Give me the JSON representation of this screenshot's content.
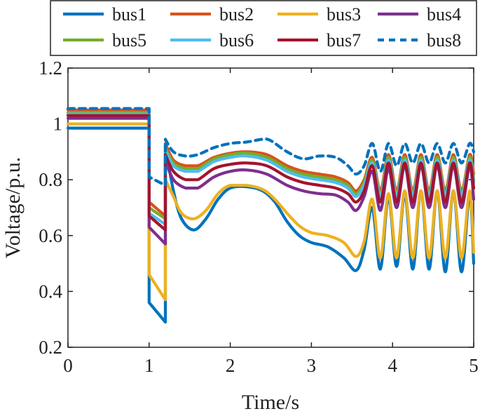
{
  "chart_data": {
    "type": "line",
    "xlabel": "Time/s",
    "ylabel": "Voltage/p.u.",
    "xlim": [
      0,
      5
    ],
    "ylim": [
      0.2,
      1.2
    ],
    "xticks": [
      0,
      1,
      2,
      3,
      4,
      5
    ],
    "xtick_labels": [
      "0",
      "1",
      "2",
      "3",
      "4",
      "5"
    ],
    "yticks": [
      0.2,
      0.4,
      0.6,
      0.8,
      1.0,
      1.2
    ],
    "ytick_labels": [
      "0.2",
      "0.4",
      "0.6",
      "0.8",
      "1",
      "1.2"
    ],
    "grid": false,
    "legend_position": "top",
    "series": [
      {
        "name": "bus1",
        "color": "#0072BD",
        "dash": "solid",
        "points": [
          [
            0,
            0.985
          ],
          [
            1,
            0.985
          ],
          [
            1,
            0.36
          ],
          [
            1.2,
            0.29
          ],
          [
            1.2,
            0.92
          ],
          [
            1.3,
            0.76
          ],
          [
            1.4,
            0.66
          ],
          [
            1.55,
            0.62
          ],
          [
            1.7,
            0.66
          ],
          [
            1.85,
            0.73
          ],
          [
            2.0,
            0.77
          ],
          [
            2.2,
            0.775
          ],
          [
            2.4,
            0.76
          ],
          [
            2.55,
            0.72
          ],
          [
            2.7,
            0.65
          ],
          [
            2.85,
            0.6
          ],
          [
            3.0,
            0.575
          ],
          [
            3.2,
            0.56
          ],
          [
            3.4,
            0.52
          ],
          [
            3.55,
            0.475
          ],
          [
            3.65,
            0.55
          ],
          [
            3.75,
            0.7
          ],
          [
            3.85,
            0.48
          ],
          [
            3.95,
            0.74
          ],
          [
            4.05,
            0.49
          ],
          [
            4.15,
            0.75
          ],
          [
            4.25,
            0.48
          ],
          [
            4.35,
            0.76
          ],
          [
            4.45,
            0.48
          ],
          [
            4.55,
            0.76
          ],
          [
            4.65,
            0.47
          ],
          [
            4.75,
            0.76
          ],
          [
            4.85,
            0.47
          ],
          [
            4.95,
            0.75
          ],
          [
            5.0,
            0.5
          ]
        ]
      },
      {
        "name": "bus2",
        "color": "#D95319",
        "dash": "solid",
        "points": [
          [
            0,
            1.05
          ],
          [
            1,
            1.05
          ],
          [
            1,
            0.72
          ],
          [
            1.2,
            0.67
          ],
          [
            1.2,
            0.93
          ],
          [
            1.3,
            0.87
          ],
          [
            1.45,
            0.85
          ],
          [
            1.6,
            0.85
          ],
          [
            1.8,
            0.88
          ],
          [
            2.0,
            0.895
          ],
          [
            2.2,
            0.9
          ],
          [
            2.45,
            0.89
          ],
          [
            2.7,
            0.85
          ],
          [
            2.9,
            0.83
          ],
          [
            3.1,
            0.82
          ],
          [
            3.3,
            0.81
          ],
          [
            3.45,
            0.79
          ],
          [
            3.55,
            0.76
          ],
          [
            3.65,
            0.8
          ],
          [
            3.75,
            0.88
          ],
          [
            3.85,
            0.76
          ],
          [
            3.95,
            0.89
          ],
          [
            4.05,
            0.76
          ],
          [
            4.15,
            0.89
          ],
          [
            4.25,
            0.76
          ],
          [
            4.35,
            0.89
          ],
          [
            4.45,
            0.76
          ],
          [
            4.55,
            0.89
          ],
          [
            4.65,
            0.76
          ],
          [
            4.75,
            0.89
          ],
          [
            4.85,
            0.76
          ],
          [
            4.95,
            0.89
          ],
          [
            5.0,
            0.82
          ]
        ]
      },
      {
        "name": "bus3",
        "color": "#EDB120",
        "dash": "solid",
        "points": [
          [
            0,
            1.0
          ],
          [
            1,
            1.0
          ],
          [
            1,
            0.46
          ],
          [
            1.2,
            0.37
          ],
          [
            1.2,
            0.8
          ],
          [
            1.3,
            0.74
          ],
          [
            1.4,
            0.68
          ],
          [
            1.55,
            0.66
          ],
          [
            1.7,
            0.69
          ],
          [
            1.85,
            0.75
          ],
          [
            2.0,
            0.78
          ],
          [
            2.2,
            0.78
          ],
          [
            2.4,
            0.765
          ],
          [
            2.55,
            0.73
          ],
          [
            2.7,
            0.68
          ],
          [
            2.85,
            0.635
          ],
          [
            3.0,
            0.61
          ],
          [
            3.2,
            0.6
          ],
          [
            3.4,
            0.575
          ],
          [
            3.55,
            0.525
          ],
          [
            3.65,
            0.58
          ],
          [
            3.75,
            0.73
          ],
          [
            3.85,
            0.52
          ],
          [
            3.95,
            0.75
          ],
          [
            4.05,
            0.52
          ],
          [
            4.15,
            0.76
          ],
          [
            4.25,
            0.52
          ],
          [
            4.35,
            0.76
          ],
          [
            4.45,
            0.52
          ],
          [
            4.55,
            0.76
          ],
          [
            4.65,
            0.52
          ],
          [
            4.75,
            0.76
          ],
          [
            4.85,
            0.52
          ],
          [
            4.95,
            0.76
          ],
          [
            5.0,
            0.54
          ]
        ]
      },
      {
        "name": "bus4",
        "color": "#7E2F8E",
        "dash": "solid",
        "points": [
          [
            0,
            1.02
          ],
          [
            1,
            1.02
          ],
          [
            1,
            0.63
          ],
          [
            1.2,
            0.57
          ],
          [
            1.2,
            0.87
          ],
          [
            1.3,
            0.8
          ],
          [
            1.45,
            0.77
          ],
          [
            1.6,
            0.77
          ],
          [
            1.8,
            0.81
          ],
          [
            2.0,
            0.83
          ],
          [
            2.2,
            0.835
          ],
          [
            2.45,
            0.82
          ],
          [
            2.7,
            0.78
          ],
          [
            2.9,
            0.76
          ],
          [
            3.1,
            0.75
          ],
          [
            3.3,
            0.745
          ],
          [
            3.45,
            0.72
          ],
          [
            3.55,
            0.69
          ],
          [
            3.65,
            0.74
          ],
          [
            3.75,
            0.83
          ],
          [
            3.85,
            0.69
          ],
          [
            3.95,
            0.84
          ],
          [
            4.05,
            0.7
          ],
          [
            4.15,
            0.85
          ],
          [
            4.25,
            0.7
          ],
          [
            4.35,
            0.85
          ],
          [
            4.45,
            0.7
          ],
          [
            4.55,
            0.85
          ],
          [
            4.65,
            0.7
          ],
          [
            4.75,
            0.85
          ],
          [
            4.85,
            0.7
          ],
          [
            4.95,
            0.85
          ],
          [
            5.0,
            0.73
          ]
        ]
      },
      {
        "name": "bus5",
        "color": "#77AC30",
        "dash": "solid",
        "points": [
          [
            0,
            1.04
          ],
          [
            1,
            1.04
          ],
          [
            1,
            0.7
          ],
          [
            1.2,
            0.66
          ],
          [
            1.2,
            0.915
          ],
          [
            1.3,
            0.86
          ],
          [
            1.45,
            0.84
          ],
          [
            1.6,
            0.84
          ],
          [
            1.8,
            0.875
          ],
          [
            2.0,
            0.89
          ],
          [
            2.2,
            0.895
          ],
          [
            2.45,
            0.88
          ],
          [
            2.7,
            0.84
          ],
          [
            2.9,
            0.82
          ],
          [
            3.1,
            0.81
          ],
          [
            3.3,
            0.8
          ],
          [
            3.45,
            0.78
          ],
          [
            3.55,
            0.75
          ],
          [
            3.65,
            0.79
          ],
          [
            3.75,
            0.87
          ],
          [
            3.85,
            0.75
          ],
          [
            3.95,
            0.88
          ],
          [
            4.05,
            0.75
          ],
          [
            4.15,
            0.88
          ],
          [
            4.25,
            0.75
          ],
          [
            4.35,
            0.88
          ],
          [
            4.45,
            0.75
          ],
          [
            4.55,
            0.88
          ],
          [
            4.65,
            0.75
          ],
          [
            4.75,
            0.88
          ],
          [
            4.85,
            0.75
          ],
          [
            4.95,
            0.88
          ],
          [
            5.0,
            0.8
          ]
        ]
      },
      {
        "name": "bus6",
        "color": "#4DBEEE",
        "dash": "solid",
        "points": [
          [
            0,
            1.035
          ],
          [
            1,
            1.035
          ],
          [
            1,
            0.68
          ],
          [
            1.2,
            0.64
          ],
          [
            1.2,
            0.905
          ],
          [
            1.3,
            0.85
          ],
          [
            1.45,
            0.83
          ],
          [
            1.6,
            0.83
          ],
          [
            1.8,
            0.865
          ],
          [
            2.0,
            0.88
          ],
          [
            2.2,
            0.885
          ],
          [
            2.45,
            0.87
          ],
          [
            2.7,
            0.83
          ],
          [
            2.9,
            0.81
          ],
          [
            3.1,
            0.8
          ],
          [
            3.3,
            0.79
          ],
          [
            3.45,
            0.77
          ],
          [
            3.55,
            0.74
          ],
          [
            3.65,
            0.78
          ],
          [
            3.75,
            0.86
          ],
          [
            3.85,
            0.74
          ],
          [
            3.95,
            0.87
          ],
          [
            4.05,
            0.74
          ],
          [
            4.15,
            0.87
          ],
          [
            4.25,
            0.74
          ],
          [
            4.35,
            0.87
          ],
          [
            4.45,
            0.74
          ],
          [
            4.55,
            0.87
          ],
          [
            4.65,
            0.74
          ],
          [
            4.75,
            0.87
          ],
          [
            4.85,
            0.74
          ],
          [
            4.95,
            0.87
          ],
          [
            5.0,
            0.79
          ]
        ]
      },
      {
        "name": "bus7",
        "color": "#A2142F",
        "dash": "solid",
        "points": [
          [
            0,
            1.03
          ],
          [
            1,
            1.03
          ],
          [
            1,
            0.67
          ],
          [
            1.2,
            0.62
          ],
          [
            1.2,
            0.89
          ],
          [
            1.3,
            0.83
          ],
          [
            1.45,
            0.8
          ],
          [
            1.6,
            0.8
          ],
          [
            1.8,
            0.84
          ],
          [
            2.0,
            0.855
          ],
          [
            2.2,
            0.86
          ],
          [
            2.45,
            0.85
          ],
          [
            2.7,
            0.81
          ],
          [
            2.9,
            0.79
          ],
          [
            3.1,
            0.78
          ],
          [
            3.3,
            0.77
          ],
          [
            3.45,
            0.75
          ],
          [
            3.55,
            0.72
          ],
          [
            3.65,
            0.76
          ],
          [
            3.75,
            0.85
          ],
          [
            3.85,
            0.72
          ],
          [
            3.95,
            0.86
          ],
          [
            4.05,
            0.72
          ],
          [
            4.15,
            0.86
          ],
          [
            4.25,
            0.72
          ],
          [
            4.35,
            0.86
          ],
          [
            4.45,
            0.72
          ],
          [
            4.55,
            0.86
          ],
          [
            4.65,
            0.72
          ],
          [
            4.75,
            0.86
          ],
          [
            4.85,
            0.72
          ],
          [
            4.95,
            0.86
          ],
          [
            5.0,
            0.77
          ]
        ]
      },
      {
        "name": "bus8",
        "color": "#0072BD",
        "dash": "dashed",
        "points": [
          [
            0,
            1.055
          ],
          [
            1,
            1.055
          ],
          [
            1,
            0.81
          ],
          [
            1.2,
            0.78
          ],
          [
            1.2,
            0.945
          ],
          [
            1.3,
            0.9
          ],
          [
            1.45,
            0.885
          ],
          [
            1.6,
            0.89
          ],
          [
            1.8,
            0.915
          ],
          [
            2.0,
            0.93
          ],
          [
            2.2,
            0.935
          ],
          [
            2.4,
            0.945
          ],
          [
            2.5,
            0.94
          ],
          [
            2.7,
            0.9
          ],
          [
            2.9,
            0.875
          ],
          [
            3.1,
            0.885
          ],
          [
            3.3,
            0.88
          ],
          [
            3.45,
            0.85
          ],
          [
            3.55,
            0.82
          ],
          [
            3.65,
            0.85
          ],
          [
            3.75,
            0.93
          ],
          [
            3.85,
            0.83
          ],
          [
            3.95,
            0.93
          ],
          [
            4.05,
            0.85
          ],
          [
            4.15,
            0.93
          ],
          [
            4.25,
            0.86
          ],
          [
            4.35,
            0.93
          ],
          [
            4.45,
            0.86
          ],
          [
            4.55,
            0.93
          ],
          [
            4.65,
            0.86
          ],
          [
            4.75,
            0.93
          ],
          [
            4.85,
            0.86
          ],
          [
            4.95,
            0.93
          ],
          [
            5.0,
            0.9
          ]
        ]
      }
    ]
  }
}
